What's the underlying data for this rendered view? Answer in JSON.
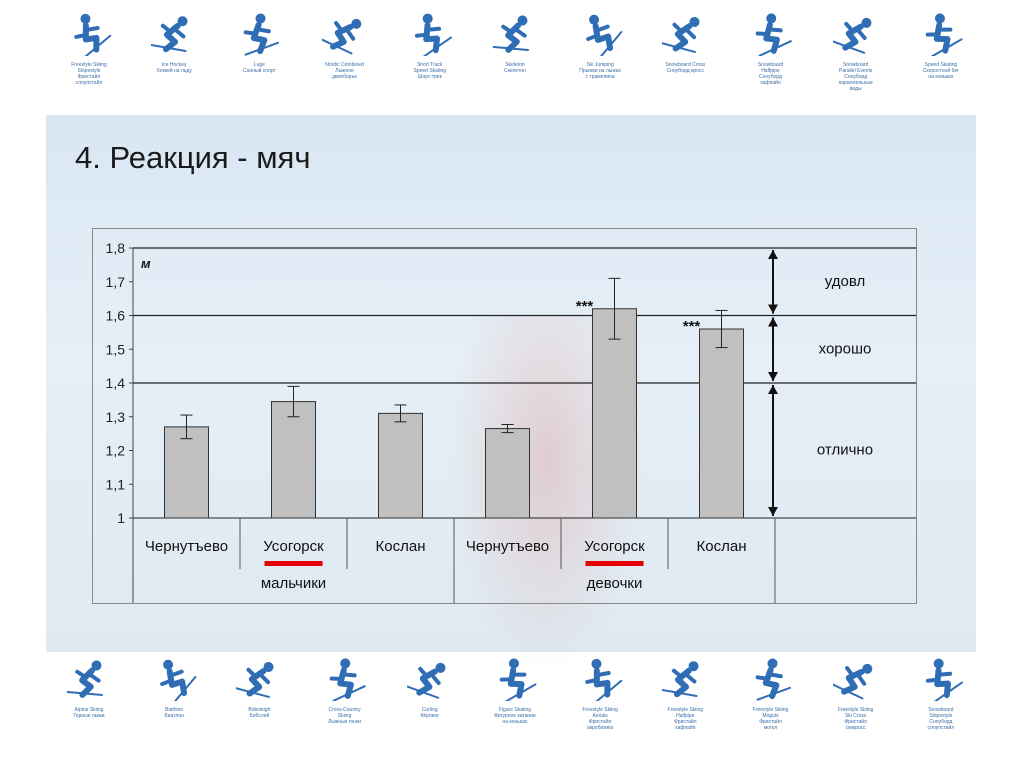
{
  "slide": {
    "title": "4. Реакция - мяч"
  },
  "top_icons": [
    {
      "icon": "freestyle-skiing-slopestyle-icon",
      "caption": "Freestyle Skiing\nSlopestyle\nФристайл\nслоупстайл"
    },
    {
      "icon": "ice-hockey-icon",
      "caption": "Ice Hockey\nХоккей на льду"
    },
    {
      "icon": "luge-icon",
      "caption": "Luge\nСанный спорт"
    },
    {
      "icon": "nordic-combined-icon",
      "caption": "Nordic Combined\nЛыжное\nдвоеборье"
    },
    {
      "icon": "short-track-icon",
      "caption": "Short Track\nSpeed Skating\nШорт-трек"
    },
    {
      "icon": "skeleton-icon",
      "caption": "Skeleton\nСкелетон"
    },
    {
      "icon": "ski-jumping-icon",
      "caption": "Ski Jumping\nПрыжки на лыжах\nс трамплина"
    },
    {
      "icon": "snowboard-cross-icon",
      "caption": "Snowboard Cross\nСноуборд-кросс"
    },
    {
      "icon": "snowboard-halfpipe-icon",
      "caption": "Snowboard\nHalfpipe\nСноуборд\nхафпайп"
    },
    {
      "icon": "snowboard-parallel-icon",
      "caption": "Snowboard\nParallel Events\nСноуборд\nпараллельные\nвиды"
    },
    {
      "icon": "speed-skating-icon",
      "caption": "Speed Skating\nСкоростной бег\nна коньках"
    }
  ],
  "bottom_icons": [
    {
      "icon": "alpine-skiing-icon",
      "caption": "Alpine Skiing\nГорные лыжи"
    },
    {
      "icon": "biathlon-icon",
      "caption": "Biathlon\nБиатлон"
    },
    {
      "icon": "bobsleigh-icon",
      "caption": "Bobsleigh\nБобслей"
    },
    {
      "icon": "cross-country-skiing-icon",
      "caption": "Cross-Country\nSkiing\nЛыжные гонки"
    },
    {
      "icon": "curling-icon",
      "caption": "Curling\nКёрлинг"
    },
    {
      "icon": "figure-skating-icon",
      "caption": "Figure Skating\nФигурное катание\nна коньках"
    },
    {
      "icon": "freestyle-aerials-icon",
      "caption": "Freestyle Skiing\nAerials\nФристайл\nакробатика"
    },
    {
      "icon": "freestyle-halfpipe-icon",
      "caption": "Freestyle Skiing\nHalfpipe\nФристайл\nхафпайп"
    },
    {
      "icon": "freestyle-moguls-icon",
      "caption": "Freestyle Skiing\nMoguls\nФристайл\nмогул"
    },
    {
      "icon": "freestyle-ski-cross-icon",
      "caption": "Freestyle Skiing\nSki Cross\nФристайл\nскикросс"
    },
    {
      "icon": "snowboard-slopestyle-icon",
      "caption": "Snowboard\nSlopestyle\nСноуборд\nслоупстайл"
    }
  ],
  "colors": {
    "icon_blue": "#2f6db5",
    "bar_fill": "#c0c0c0",
    "underline_red": "#e60000"
  },
  "chart_data": {
    "type": "bar",
    "title": "",
    "ylabel": "м",
    "ylim": [
      1,
      1.8
    ],
    "yticks": [
      "1",
      "1,1",
      "1,2",
      "1,3",
      "1,4",
      "1,5",
      "1,6",
      "1,7",
      "1,8"
    ],
    "categories": [
      "Чернутъево",
      "Усогорск",
      "Кослан",
      "Чернутъево",
      "Усогорск",
      "Кослан"
    ],
    "groups": [
      {
        "label": "мальчики",
        "span": [
          0,
          2
        ]
      },
      {
        "label": "девочки",
        "span": [
          3,
          5
        ]
      }
    ],
    "highlighted_categories": [
      1,
      4
    ],
    "values": [
      1.27,
      1.345,
      1.31,
      1.265,
      1.62,
      1.56
    ],
    "errors": [
      0.035,
      0.045,
      0.025,
      0.012,
      0.09,
      0.055
    ],
    "significance": [
      "",
      "",
      "",
      "",
      "***",
      "***"
    ],
    "reference_lines": [
      1.4,
      1.6,
      1.8
    ],
    "zones": [
      {
        "label": "удовл",
        "from": 1.6,
        "to": 1.8
      },
      {
        "label": "хорошо",
        "from": 1.4,
        "to": 1.6
      },
      {
        "label": "отлично",
        "from": 1.0,
        "to": 1.4
      }
    ],
    "grid": false,
    "legend": "none"
  }
}
